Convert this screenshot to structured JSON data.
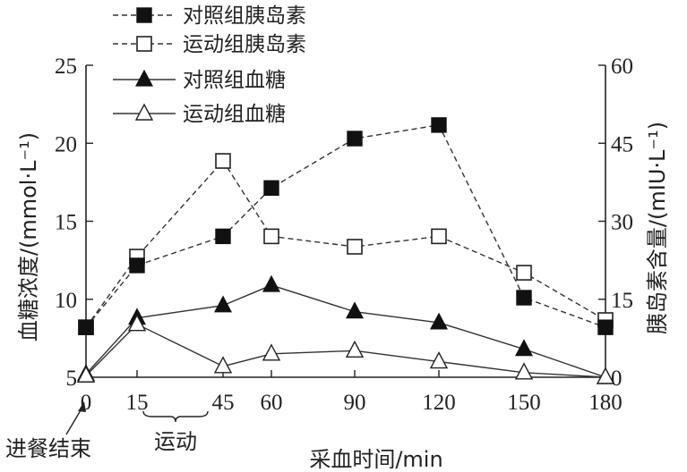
{
  "chart_data": {
    "type": "line",
    "title": "",
    "xlabel": "采血时间/min",
    "ylabel_left": "血糖浓度/(mmol·L⁻¹)",
    "ylabel_right": "胰岛素含量/(mIU·L⁻¹)",
    "x": [
      0,
      15,
      45,
      60,
      90,
      120,
      150,
      180
    ],
    "x_tick_labels": [
      "0",
      "15",
      "45",
      "60",
      "90",
      "120",
      "150",
      "180"
    ],
    "ylim_left": [
      5,
      25
    ],
    "yticks_left": [
      5,
      10,
      15,
      20,
      25
    ],
    "ylim_right": [
      0,
      60
    ],
    "yticks_right": [
      0,
      15,
      30,
      45,
      60
    ],
    "grid": false,
    "legend_position": "top-left",
    "series": [
      {
        "name": "对照组胰岛素",
        "axis": "right",
        "marker": "filled-square",
        "line": "dashed",
        "values": [
          9.6,
          21.5,
          27.1,
          36.4,
          45.9,
          48.5,
          15.3,
          9.6
        ]
      },
      {
        "name": "运动组胰岛素",
        "axis": "right",
        "marker": "open-square",
        "line": "dashed",
        "values": [
          9.6,
          23.2,
          41.6,
          27.1,
          25.1,
          27.1,
          20.1,
          11.0
        ]
      },
      {
        "name": "对照组血糖",
        "axis": "left",
        "marker": "filled-triangle",
        "line": "solid",
        "values": [
          5.2,
          8.8,
          9.6,
          10.9,
          9.2,
          8.5,
          6.8,
          5.0
        ]
      },
      {
        "name": "运动组血糖",
        "axis": "left",
        "marker": "open-triangle",
        "line": "solid",
        "values": [
          5.1,
          8.4,
          5.7,
          6.5,
          6.7,
          6.0,
          5.3,
          5.0
        ]
      }
    ],
    "annotations": [
      {
        "text": "进餐结束",
        "target_x": 0,
        "type": "arrow"
      },
      {
        "text": "运动",
        "range_x": [
          15,
          45
        ],
        "type": "brace"
      }
    ]
  },
  "labels": {
    "xlabel": "采血时间/min",
    "ylabel_left": "血糖浓度/(mmol·L⁻¹)",
    "ylabel_right": "胰岛素含量/(mIU·L⁻¹)",
    "meal_end": "进餐结束",
    "exercise": "运动"
  }
}
